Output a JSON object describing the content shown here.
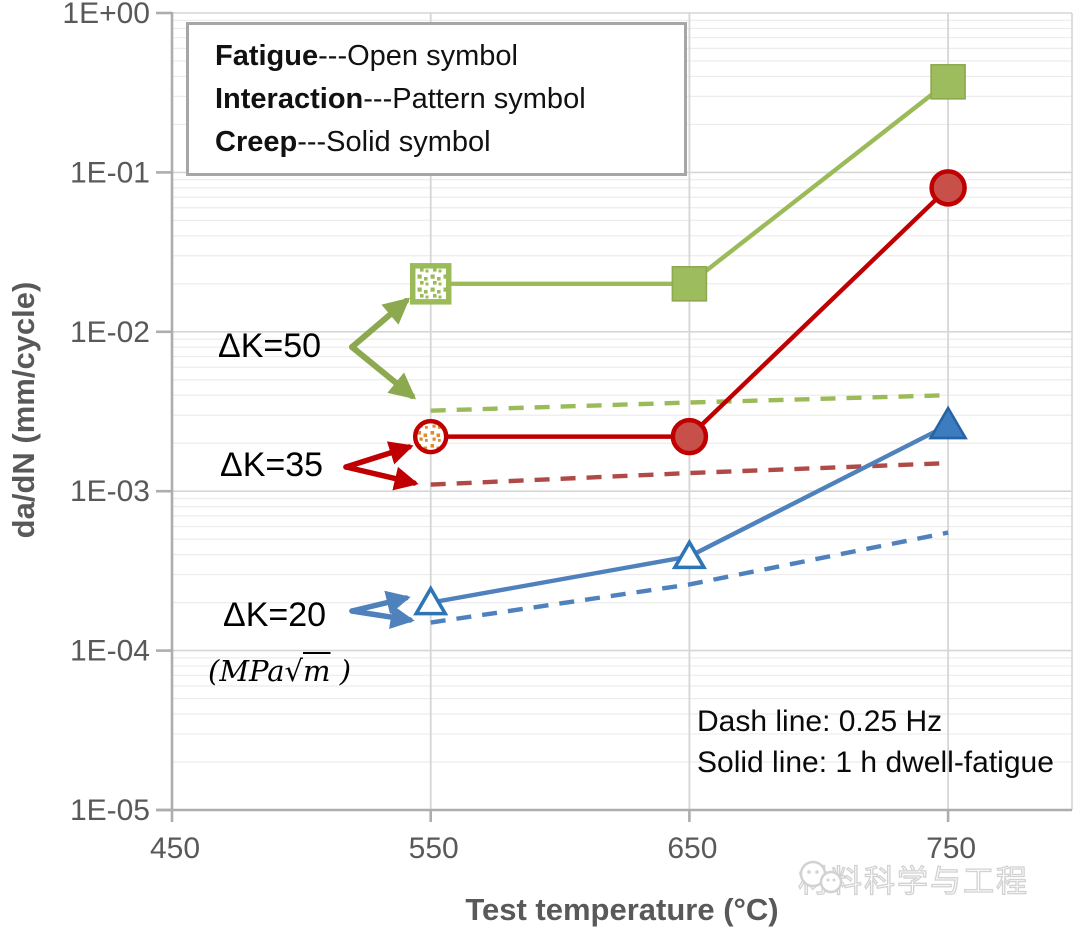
{
  "chart_data": {
    "type": "line",
    "title": "",
    "xlabel": "Test temperature (°C)",
    "ylabel": "da/dN (mm/cycle)",
    "x_axis_range": [
      450,
      800
    ],
    "y_axis_range": [
      1e-05,
      1
    ],
    "y_scale": "log",
    "grid": "minor-log-horizontal and major vertical",
    "x_ticks": [
      {
        "label": "450",
        "value": 450
      },
      {
        "label": "550",
        "value": 550
      },
      {
        "label": "650",
        "value": 650
      },
      {
        "label": "750",
        "value": 750
      }
    ],
    "y_ticks": [
      {
        "label": "1E+00",
        "value": 1
      },
      {
        "label": "1E-01",
        "value": 0.1
      },
      {
        "label": "1E-02",
        "value": 0.01
      },
      {
        "label": "1E-03",
        "value": 0.001
      },
      {
        "label": "1E-04",
        "value": 0.0001
      },
      {
        "label": "1E-05",
        "value": 1e-05
      }
    ],
    "series": [
      {
        "id": "dk50-dwell",
        "label": "ΔK=50, 1 h dwell-fatigue",
        "line": "solid",
        "color": "green",
        "x": [
          550,
          650,
          750
        ],
        "y": [
          0.02,
          0.02,
          0.37
        ],
        "markers": [
          "pattern-square",
          "solid-square",
          "solid-square"
        ],
        "mechanisms": [
          "interaction",
          "creep",
          "creep"
        ]
      },
      {
        "id": "dk35-dwell",
        "label": "ΔK=35, 1 h dwell-fatigue",
        "line": "solid",
        "color": "red",
        "x": [
          550,
          650,
          750
        ],
        "y": [
          0.0022,
          0.0022,
          0.08
        ],
        "markers": [
          "pattern-circle",
          "solid-circle",
          "solid-circle"
        ],
        "mechanisms": [
          "interaction",
          "creep",
          "creep"
        ]
      },
      {
        "id": "dk20-dwell",
        "label": "ΔK=20, 1 h dwell-fatigue",
        "line": "solid",
        "color": "blue",
        "x": [
          550,
          650,
          750
        ],
        "y": [
          0.0002,
          0.00039,
          0.0026
        ],
        "markers": [
          "open-triangle",
          "open-triangle",
          "solid-triangle"
        ],
        "mechanisms": [
          "fatigue",
          "fatigue",
          "creep"
        ]
      },
      {
        "id": "dk50-fatigue",
        "label": "ΔK=50, 0.25 Hz",
        "line": "dashed",
        "color": "green",
        "x": [
          550,
          650,
          750
        ],
        "y": [
          0.0032,
          0.0036,
          0.004
        ],
        "markers": []
      },
      {
        "id": "dk35-fatigue",
        "label": "ΔK=35, 0.25 Hz",
        "line": "dashed",
        "color": "redDash",
        "x": [
          550,
          650,
          750
        ],
        "y": [
          0.0011,
          0.0013,
          0.0015
        ],
        "markers": []
      },
      {
        "id": "dk20-fatigue",
        "label": "ΔK=20, 0.25 Hz",
        "line": "dashed",
        "color": "blue",
        "x": [
          550,
          650,
          750
        ],
        "y": [
          0.00015,
          0.00026,
          0.00055
        ],
        "markers": []
      }
    ]
  },
  "legend_box": {
    "items": [
      {
        "bold": "Fatigue",
        "rest": "---Open symbol"
      },
      {
        "bold": "Interaction",
        "rest": "---Pattern symbol"
      },
      {
        "bold": "Creep",
        "rest": "---Solid symbol"
      }
    ]
  },
  "annotations": {
    "dk50": "ΔK=50",
    "dk35": "ΔK=35",
    "dk20": "ΔK=20",
    "units_open": "(MPa",
    "units_sqrt": "√",
    "units_arg": "m",
    "units_close": " )"
  },
  "note": {
    "line1": "Dash line: 0.25 Hz",
    "line2": "Solid line: 1 h dwell-fatigue"
  },
  "watermark": {
    "text": "材料科学与工程"
  },
  "colors": {
    "green": "#9BBB59",
    "greenFill": "#9CBC5E",
    "greenDark": "#8CA94F",
    "red": "#C00000",
    "redFill": "#C8504B",
    "redDash": "#B04A47",
    "blue": "#4F81BD",
    "blueFill": "#3D7CBF",
    "blueStroke": "#2E75B6",
    "blueDark": "#2565A3",
    "orange": "#DF8A2F",
    "axis": "#ADADAD",
    "tickText": "#595959",
    "gridMajor": "#D6D6D6",
    "gridMinor": "#ECECEC",
    "white": "#FFFFFF"
  }
}
